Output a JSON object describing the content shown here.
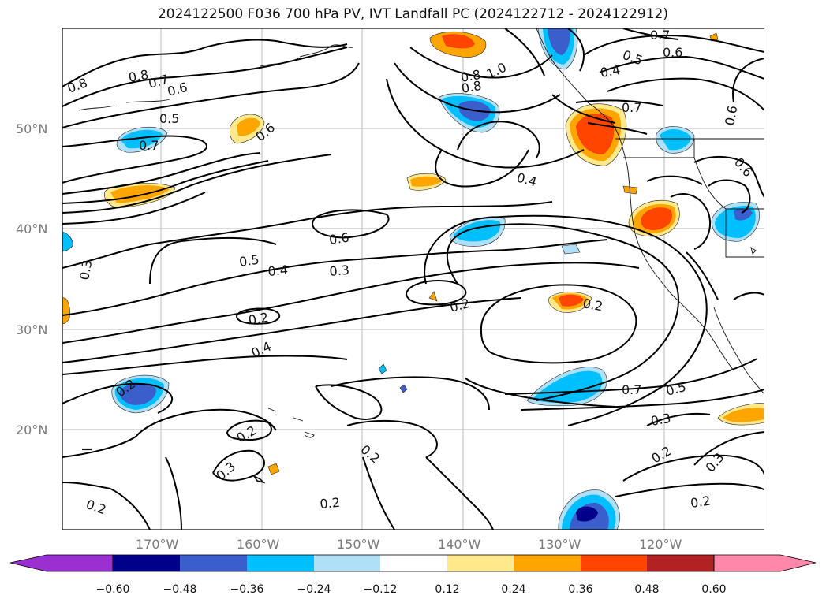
{
  "title": "2024122500 F036 700 hPa PV, IVT Landfall PC (2024122712 - 2024122912)",
  "map": {
    "region": "North Pacific",
    "gridlines": true,
    "lat_labels": [
      "50°N",
      "40°N",
      "30°N",
      "20°N"
    ],
    "lon_labels": [
      "170°W",
      "160°W",
      "150°W",
      "140°W",
      "130°W",
      "120°W"
    ],
    "contour_labels": [
      "0.8",
      "0.8",
      "0.7",
      "0.6",
      "0.5",
      "0.7",
      "0.6",
      "0.7",
      "0.6",
      "0.5",
      "0.4",
      "0.8",
      "0.8",
      "1.0",
      "0.7",
      "0.4",
      "0.6",
      "0.6",
      "0.5",
      "0.4",
      "0.3",
      "0.3",
      "0.2",
      "0.2",
      "0.2",
      "0.4",
      "0.2",
      "0.2",
      "0.3",
      "0.2",
      "0.2",
      "0.7",
      "0.5",
      "0.3",
      "0.2",
      "0.3",
      "0.2",
      "0.2",
      "0.6"
    ]
  },
  "colorbar": {
    "labels": [
      "−0.60",
      "−0.48",
      "−0.36",
      "−0.24",
      "−0.12",
      "0.12",
      "0.24",
      "0.36",
      "0.48",
      "0.60"
    ],
    "colors": [
      "#9b30d0",
      "#00008b",
      "#3a5fcd",
      "#00bfff",
      "#b0e0f8",
      "#ffffff",
      "#ffe98a",
      "#ffa500",
      "#ff4500",
      "#b22222",
      "#ff88aa"
    ]
  },
  "anomaly_colors": {
    "neg_light": "#b0e0f8",
    "neg_mid": "#00bfff",
    "neg_strong": "#3a5fcd",
    "neg_max": "#00008b",
    "pos_light": "#ffe98a",
    "pos_mid": "#ffa500",
    "pos_strong": "#ff4500",
    "pos_max": "#b22222"
  }
}
